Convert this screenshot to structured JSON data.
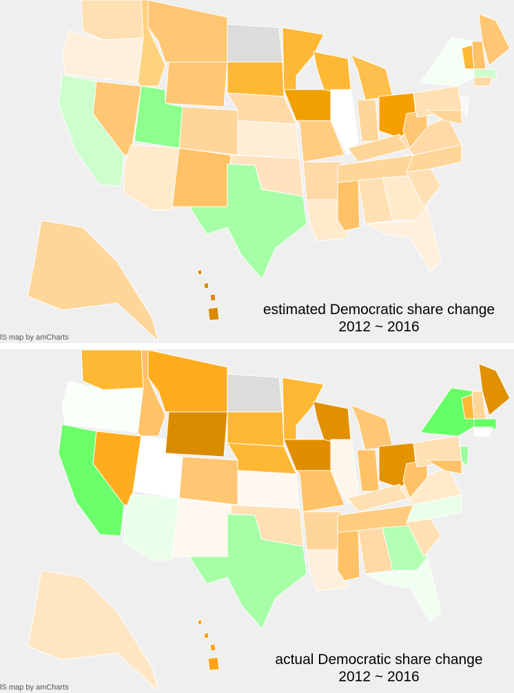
{
  "panels": [
    {
      "caption": [
        "estimated Democratic share change",
        "2012 ~ 2016"
      ],
      "credit": "JS map by amCharts"
    },
    {
      "caption": [
        "actual Democratic share change",
        "2012 ~ 2016"
      ],
      "credit": "JS map by amCharts"
    }
  ]
}
